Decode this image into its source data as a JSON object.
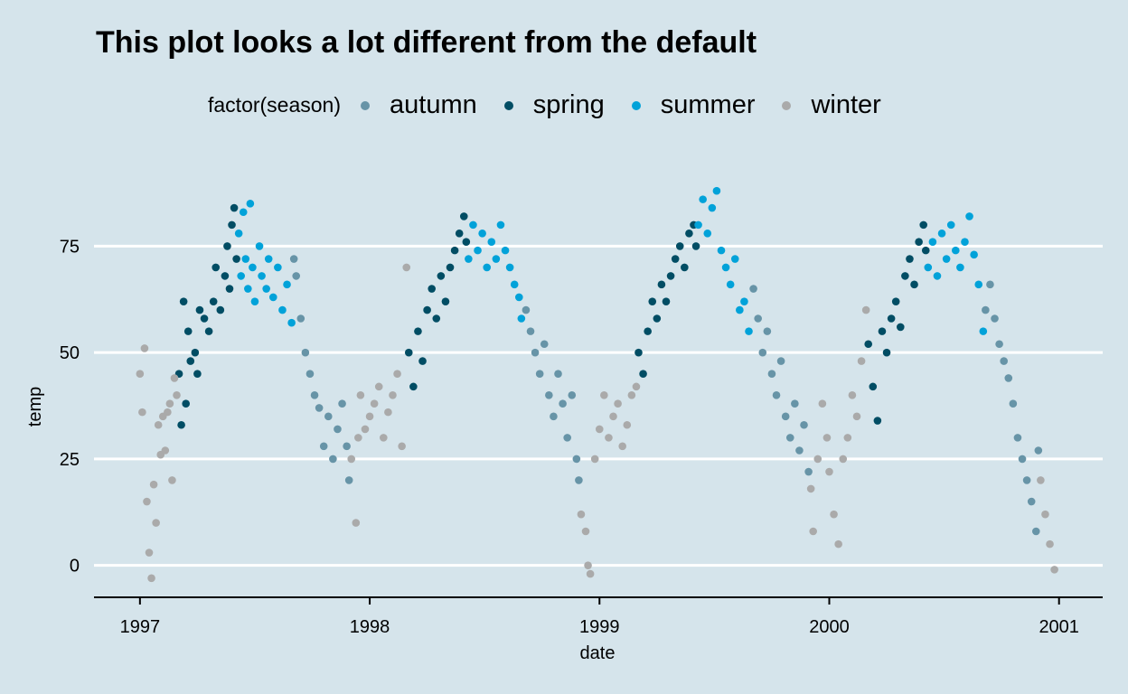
{
  "chart_data": {
    "type": "scatter",
    "title": "This plot looks a lot different from the default",
    "xlabel": "date",
    "ylabel": "temp",
    "xlim": [
      1996.8,
      2001.19
    ],
    "ylim": [
      -7.5,
      92.5
    ],
    "xticks": [
      1997,
      1998,
      1999,
      2000,
      2001
    ],
    "xtick_labels": [
      "1997",
      "1998",
      "1999",
      "2000",
      "2001"
    ],
    "yticks": [
      0,
      25,
      50,
      75
    ],
    "ytick_labels": [
      "0",
      "25",
      "50",
      "75"
    ],
    "grid": "horizontal",
    "legend": {
      "title": "factor(season)",
      "placement": "top"
    },
    "series": [
      {
        "name": "autumn",
        "color": "#6794a7",
        "points": [
          [
            1997.67,
            72
          ],
          [
            1997.68,
            68
          ],
          [
            1997.7,
            58
          ],
          [
            1997.72,
            50
          ],
          [
            1997.74,
            45
          ],
          [
            1997.76,
            40
          ],
          [
            1997.78,
            37
          ],
          [
            1997.8,
            28
          ],
          [
            1997.82,
            35
          ],
          [
            1997.84,
            25
          ],
          [
            1997.86,
            32
          ],
          [
            1997.88,
            38
          ],
          [
            1997.9,
            28
          ],
          [
            1997.91,
            20
          ],
          [
            1998.68,
            60
          ],
          [
            1998.7,
            55
          ],
          [
            1998.72,
            50
          ],
          [
            1998.74,
            45
          ],
          [
            1998.76,
            52
          ],
          [
            1998.78,
            40
          ],
          [
            1998.8,
            35
          ],
          [
            1998.82,
            45
          ],
          [
            1998.84,
            38
          ],
          [
            1998.86,
            30
          ],
          [
            1998.88,
            40
          ],
          [
            1998.9,
            25
          ],
          [
            1998.91,
            20
          ],
          [
            1999.67,
            65
          ],
          [
            1999.69,
            58
          ],
          [
            1999.71,
            50
          ],
          [
            1999.73,
            55
          ],
          [
            1999.75,
            45
          ],
          [
            1999.77,
            40
          ],
          [
            1999.79,
            48
          ],
          [
            1999.81,
            35
          ],
          [
            1999.83,
            30
          ],
          [
            1999.85,
            38
          ],
          [
            1999.87,
            27
          ],
          [
            1999.89,
            33
          ],
          [
            1999.91,
            22
          ],
          [
            2000.68,
            60
          ],
          [
            2000.7,
            66
          ],
          [
            2000.72,
            58
          ],
          [
            2000.74,
            52
          ],
          [
            2000.76,
            48
          ],
          [
            2000.78,
            44
          ],
          [
            2000.8,
            38
          ],
          [
            2000.82,
            30
          ],
          [
            2000.84,
            25
          ],
          [
            2000.86,
            20
          ],
          [
            2000.88,
            15
          ],
          [
            2000.9,
            8
          ],
          [
            2000.91,
            27
          ]
        ]
      },
      {
        "name": "spring",
        "color": "#014d64",
        "points": [
          [
            1997.17,
            45
          ],
          [
            1997.18,
            33
          ],
          [
            1997.19,
            62
          ],
          [
            1997.2,
            38
          ],
          [
            1997.21,
            55
          ],
          [
            1997.22,
            48
          ],
          [
            1997.24,
            50
          ],
          [
            1997.25,
            45
          ],
          [
            1997.26,
            60
          ],
          [
            1997.28,
            58
          ],
          [
            1997.3,
            55
          ],
          [
            1997.32,
            62
          ],
          [
            1997.33,
            70
          ],
          [
            1997.35,
            60
          ],
          [
            1997.37,
            68
          ],
          [
            1997.38,
            75
          ],
          [
            1997.39,
            65
          ],
          [
            1997.4,
            80
          ],
          [
            1997.41,
            84
          ],
          [
            1997.42,
            72
          ],
          [
            1998.17,
            50
          ],
          [
            1998.19,
            42
          ],
          [
            1998.21,
            55
          ],
          [
            1998.23,
            48
          ],
          [
            1998.25,
            60
          ],
          [
            1998.27,
            65
          ],
          [
            1998.29,
            58
          ],
          [
            1998.31,
            68
          ],
          [
            1998.33,
            62
          ],
          [
            1998.35,
            70
          ],
          [
            1998.37,
            74
          ],
          [
            1998.39,
            78
          ],
          [
            1998.41,
            82
          ],
          [
            1998.42,
            76
          ],
          [
            1999.17,
            50
          ],
          [
            1999.19,
            45
          ],
          [
            1999.21,
            55
          ],
          [
            1999.23,
            62
          ],
          [
            1999.25,
            58
          ],
          [
            1999.27,
            66
          ],
          [
            1999.29,
            62
          ],
          [
            1999.31,
            68
          ],
          [
            1999.33,
            72
          ],
          [
            1999.35,
            75
          ],
          [
            1999.37,
            70
          ],
          [
            1999.39,
            78
          ],
          [
            1999.41,
            80
          ],
          [
            1999.42,
            75
          ],
          [
            2000.17,
            52
          ],
          [
            2000.19,
            42
          ],
          [
            2000.21,
            34
          ],
          [
            2000.23,
            55
          ],
          [
            2000.25,
            50
          ],
          [
            2000.27,
            58
          ],
          [
            2000.29,
            62
          ],
          [
            2000.31,
            56
          ],
          [
            2000.33,
            68
          ],
          [
            2000.35,
            72
          ],
          [
            2000.37,
            66
          ],
          [
            2000.39,
            76
          ],
          [
            2000.41,
            80
          ],
          [
            2000.42,
            74
          ]
        ]
      },
      {
        "name": "summer",
        "color": "#01a2d9",
        "points": [
          [
            1997.43,
            78
          ],
          [
            1997.44,
            68
          ],
          [
            1997.45,
            83
          ],
          [
            1997.46,
            72
          ],
          [
            1997.47,
            65
          ],
          [
            1997.48,
            85
          ],
          [
            1997.49,
            70
          ],
          [
            1997.5,
            62
          ],
          [
            1997.52,
            75
          ],
          [
            1997.53,
            68
          ],
          [
            1997.55,
            65
          ],
          [
            1997.56,
            72
          ],
          [
            1997.58,
            63
          ],
          [
            1997.6,
            70
          ],
          [
            1997.62,
            60
          ],
          [
            1997.64,
            66
          ],
          [
            1997.66,
            57
          ],
          [
            1998.43,
            72
          ],
          [
            1998.45,
            80
          ],
          [
            1998.47,
            74
          ],
          [
            1998.49,
            78
          ],
          [
            1998.51,
            70
          ],
          [
            1998.53,
            76
          ],
          [
            1998.55,
            72
          ],
          [
            1998.57,
            80
          ],
          [
            1998.59,
            74
          ],
          [
            1998.61,
            70
          ],
          [
            1998.63,
            66
          ],
          [
            1998.65,
            63
          ],
          [
            1998.66,
            58
          ],
          [
            1999.43,
            80
          ],
          [
            1999.45,
            86
          ],
          [
            1999.47,
            78
          ],
          [
            1999.49,
            84
          ],
          [
            1999.51,
            88
          ],
          [
            1999.53,
            74
          ],
          [
            1999.55,
            70
          ],
          [
            1999.57,
            66
          ],
          [
            1999.59,
            72
          ],
          [
            1999.61,
            60
          ],
          [
            1999.63,
            62
          ],
          [
            1999.65,
            55
          ],
          [
            2000.43,
            70
          ],
          [
            2000.45,
            76
          ],
          [
            2000.47,
            68
          ],
          [
            2000.49,
            78
          ],
          [
            2000.51,
            72
          ],
          [
            2000.53,
            80
          ],
          [
            2000.55,
            74
          ],
          [
            2000.57,
            70
          ],
          [
            2000.59,
            76
          ],
          [
            2000.61,
            82
          ],
          [
            2000.63,
            73
          ],
          [
            2000.65,
            66
          ],
          [
            2000.67,
            55
          ]
        ]
      },
      {
        "name": "winter",
        "color": "#aaaaaa",
        "points": [
          [
            1997.0,
            45
          ],
          [
            1997.01,
            36
          ],
          [
            1997.02,
            51
          ],
          [
            1997.03,
            15
          ],
          [
            1997.04,
            3
          ],
          [
            1997.05,
            -3
          ],
          [
            1997.06,
            19
          ],
          [
            1997.07,
            10
          ],
          [
            1997.08,
            33
          ],
          [
            1997.09,
            26
          ],
          [
            1997.1,
            35
          ],
          [
            1997.11,
            27
          ],
          [
            1997.12,
            36
          ],
          [
            1997.13,
            38
          ],
          [
            1997.14,
            20
          ],
          [
            1997.15,
            44
          ],
          [
            1997.16,
            40
          ],
          [
            1997.92,
            25
          ],
          [
            1997.94,
            10
          ],
          [
            1997.95,
            30
          ],
          [
            1997.96,
            40
          ],
          [
            1997.98,
            32
          ],
          [
            1998.0,
            35
          ],
          [
            1998.02,
            38
          ],
          [
            1998.04,
            42
          ],
          [
            1998.06,
            30
          ],
          [
            1998.08,
            36
          ],
          [
            1998.1,
            40
          ],
          [
            1998.12,
            45
          ],
          [
            1998.14,
            28
          ],
          [
            1998.16,
            70
          ],
          [
            1998.92,
            12
          ],
          [
            1998.94,
            8
          ],
          [
            1998.95,
            0
          ],
          [
            1998.96,
            -2
          ],
          [
            1998.98,
            25
          ],
          [
            1999.0,
            32
          ],
          [
            1999.02,
            40
          ],
          [
            1999.04,
            30
          ],
          [
            1999.06,
            35
          ],
          [
            1999.08,
            38
          ],
          [
            1999.1,
            28
          ],
          [
            1999.12,
            33
          ],
          [
            1999.14,
            40
          ],
          [
            1999.16,
            42
          ],
          [
            1999.92,
            18
          ],
          [
            1999.93,
            8
          ],
          [
            1999.95,
            25
          ],
          [
            1999.97,
            38
          ],
          [
            1999.99,
            30
          ],
          [
            2000.0,
            22
          ],
          [
            2000.02,
            12
          ],
          [
            2000.04,
            5
          ],
          [
            2000.06,
            25
          ],
          [
            2000.08,
            30
          ],
          [
            2000.1,
            40
          ],
          [
            2000.12,
            35
          ],
          [
            2000.14,
            48
          ],
          [
            2000.16,
            60
          ],
          [
            2000.92,
            20
          ],
          [
            2000.94,
            12
          ],
          [
            2000.96,
            5
          ],
          [
            2000.98,
            -1
          ]
        ]
      }
    ]
  }
}
